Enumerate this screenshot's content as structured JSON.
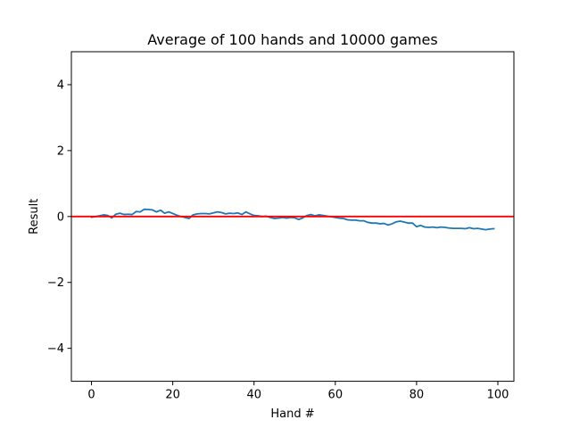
{
  "chart_data": {
    "type": "line",
    "title": "Average of 100 hands and 10000 games",
    "xlabel": "Hand #",
    "ylabel": "Result",
    "xlim": [
      -4.95,
      103.95
    ],
    "ylim": [
      -5,
      5
    ],
    "xticks": [
      0,
      20,
      40,
      60,
      80,
      100
    ],
    "xtick_labels": [
      "0",
      "20",
      "40",
      "60",
      "80",
      "100"
    ],
    "yticks": [
      -4,
      -2,
      0,
      2,
      4
    ],
    "ytick_labels": [
      "−4",
      "−2",
      "0",
      "2",
      "4"
    ],
    "grid": false,
    "series": [
      {
        "color": "#1f77b4",
        "x": [
          0,
          1,
          2,
          3,
          4,
          5,
          6,
          7,
          8,
          9,
          10,
          11,
          12,
          13,
          14,
          15,
          16,
          17,
          18,
          19,
          20,
          21,
          22,
          23,
          24,
          25,
          26,
          27,
          28,
          29,
          30,
          31,
          32,
          33,
          34,
          35,
          36,
          37,
          38,
          39,
          40,
          41,
          42,
          43,
          44,
          45,
          46,
          47,
          48,
          49,
          50,
          51,
          52,
          53,
          54,
          55,
          56,
          57,
          58,
          59,
          60,
          61,
          62,
          63,
          64,
          65,
          66,
          67,
          68,
          69,
          70,
          71,
          72,
          73,
          74,
          75,
          76,
          77,
          78,
          79,
          80,
          81,
          82,
          83,
          84,
          85,
          86,
          87,
          88,
          89,
          90,
          91,
          92,
          93,
          94,
          95,
          96,
          97,
          98,
          99
        ],
        "values": [
          -0.02,
          0.0,
          0.02,
          0.05,
          0.03,
          -0.04,
          0.07,
          0.1,
          0.06,
          0.07,
          0.06,
          0.15,
          0.14,
          0.22,
          0.21,
          0.2,
          0.14,
          0.19,
          0.1,
          0.14,
          0.09,
          0.04,
          0.0,
          -0.03,
          -0.06,
          0.05,
          0.08,
          0.09,
          0.09,
          0.08,
          0.11,
          0.14,
          0.12,
          0.08,
          0.1,
          0.09,
          0.11,
          0.06,
          0.14,
          0.08,
          0.03,
          0.02,
          0.0,
          0.01,
          -0.03,
          -0.06,
          -0.05,
          -0.03,
          -0.05,
          -0.03,
          -0.04,
          -0.09,
          -0.04,
          0.03,
          0.06,
          0.02,
          0.05,
          0.03,
          0.01,
          -0.01,
          -0.03,
          -0.05,
          -0.06,
          -0.1,
          -0.11,
          -0.11,
          -0.13,
          -0.13,
          -0.18,
          -0.2,
          -0.2,
          -0.22,
          -0.21,
          -0.26,
          -0.22,
          -0.16,
          -0.14,
          -0.17,
          -0.2,
          -0.2,
          -0.31,
          -0.27,
          -0.32,
          -0.33,
          -0.32,
          -0.34,
          -0.32,
          -0.33,
          -0.35,
          -0.36,
          -0.36,
          -0.36,
          -0.37,
          -0.34,
          -0.37,
          -0.36,
          -0.38,
          -0.4,
          -0.38,
          -0.37
        ]
      }
    ],
    "reference_lines": [
      {
        "axis": "y",
        "value": 0,
        "color": "#ff0000"
      }
    ]
  }
}
